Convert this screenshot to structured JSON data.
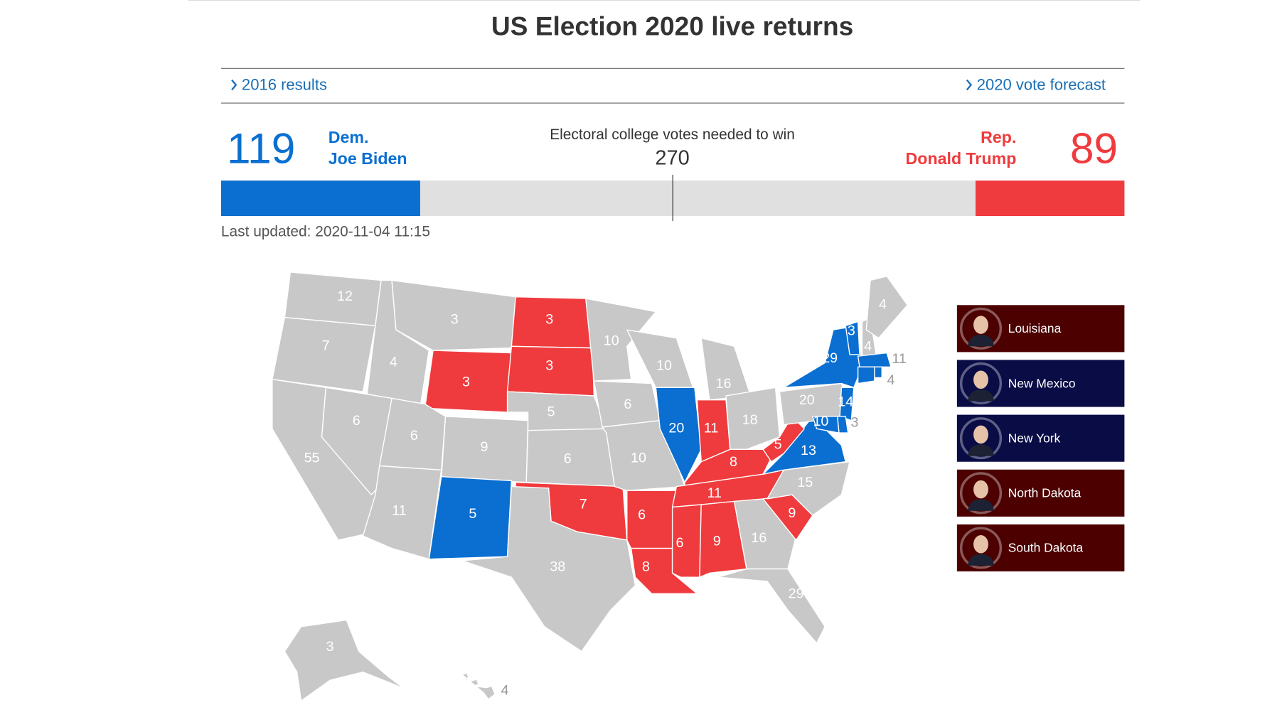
{
  "header": {
    "title": "US Election 2020 live returns",
    "links": [
      "2016 results",
      "2020 vote forecast"
    ]
  },
  "scoreboard": {
    "dem": {
      "votes": 119,
      "party": "Dem.",
      "candidate": "Joe Biden",
      "color": "#0b6fd1"
    },
    "rep": {
      "votes": 89,
      "party": "Rep.",
      "candidate": "Donald Trump",
      "color": "#ef3b3d"
    },
    "needed_label": "Electoral college votes needed to win",
    "needed": 270,
    "last_updated": "Last updated: 2020-11-04 11:15"
  },
  "map": {
    "neutral_color": "#c8c8c8",
    "states": [
      {
        "votes": 12,
        "color": "#c8c8c8"
      },
      {
        "votes": 7,
        "color": "#c8c8c8"
      },
      {
        "votes": 55,
        "color": "#c8c8c8"
      },
      {
        "votes": 4,
        "color": "#c8c8c8"
      },
      {
        "votes": 6,
        "color": "#c8c8c8"
      },
      {
        "votes": 3,
        "color": "#c8c8c8"
      },
      {
        "votes": 3,
        "color": "#ef3b3d"
      },
      {
        "votes": 6,
        "color": "#c8c8c8"
      },
      {
        "votes": 11,
        "color": "#c8c8c8"
      },
      {
        "votes": 9,
        "color": "#c8c8c8"
      },
      {
        "votes": 5,
        "color": "#0b6fd1"
      },
      {
        "votes": 3,
        "color": "#ef3b3d"
      },
      {
        "votes": 3,
        "color": "#ef3b3d"
      },
      {
        "votes": 5,
        "color": "#c8c8c8"
      },
      {
        "votes": 6,
        "color": "#c8c8c8"
      },
      {
        "votes": 7,
        "color": "#ef3b3d"
      },
      {
        "votes": 38,
        "color": "#c8c8c8"
      },
      {
        "votes": 10,
        "color": "#c8c8c8"
      },
      {
        "votes": 6,
        "color": "#c8c8c8"
      },
      {
        "votes": 10,
        "color": "#c8c8c8"
      },
      {
        "votes": 6,
        "color": "#ef3b3d"
      },
      {
        "votes": 8,
        "color": "#ef3b3d"
      },
      {
        "votes": 10,
        "color": "#c8c8c8"
      },
      {
        "votes": 20,
        "color": "#0b6fd1"
      },
      {
        "votes": 16,
        "color": "#c8c8c8"
      },
      {
        "votes": 11,
        "color": "#ef3b3d"
      },
      {
        "votes": 18,
        "color": "#c8c8c8"
      },
      {
        "votes": 8,
        "color": "#ef3b3d"
      },
      {
        "votes": 11,
        "color": "#ef3b3d"
      },
      {
        "votes": 6,
        "color": "#ef3b3d"
      },
      {
        "votes": 9,
        "color": "#ef3b3d"
      },
      {
        "votes": 16,
        "color": "#c8c8c8"
      },
      {
        "votes": 29,
        "color": "#c8c8c8"
      },
      {
        "votes": 9,
        "color": "#ef3b3d"
      },
      {
        "votes": 15,
        "color": "#c8c8c8"
      },
      {
        "votes": 13,
        "color": "#0b6fd1"
      },
      {
        "votes": 5,
        "color": "#ef3b3d"
      },
      {
        "votes": 20,
        "color": "#c8c8c8"
      },
      {
        "votes": 29,
        "color": "#0b6fd1"
      },
      {
        "votes": 3,
        "color": "#0b6fd1"
      },
      {
        "votes": 4,
        "color": "#c8c8c8"
      },
      {
        "votes": 4,
        "color": "#c8c8c8"
      },
      {
        "votes": 11,
        "color": "#0b6fd1"
      },
      {
        "votes": 4,
        "color": "#0b6fd1"
      },
      {
        "votes": null,
        "color": "#0b6fd1"
      },
      {
        "votes": 14,
        "color": "#0b6fd1"
      },
      {
        "votes": 3,
        "color": "#0b6fd1"
      },
      {
        "votes": 10,
        "color": "#0b6fd1"
      },
      {
        "votes": 3,
        "color": "#c8c8c8"
      },
      {
        "votes": 4,
        "color": "#c8c8c8"
      }
    ]
  },
  "called": [
    {
      "state": "Louisiana",
      "color": "#4c0000"
    },
    {
      "state": "New Mexico",
      "color": "#0a0c45"
    },
    {
      "state": "New York",
      "color": "#0a0c45"
    },
    {
      "state": "North Dakota",
      "color": "#4c0000"
    },
    {
      "state": "South Dakota",
      "color": "#4c0000"
    }
  ]
}
